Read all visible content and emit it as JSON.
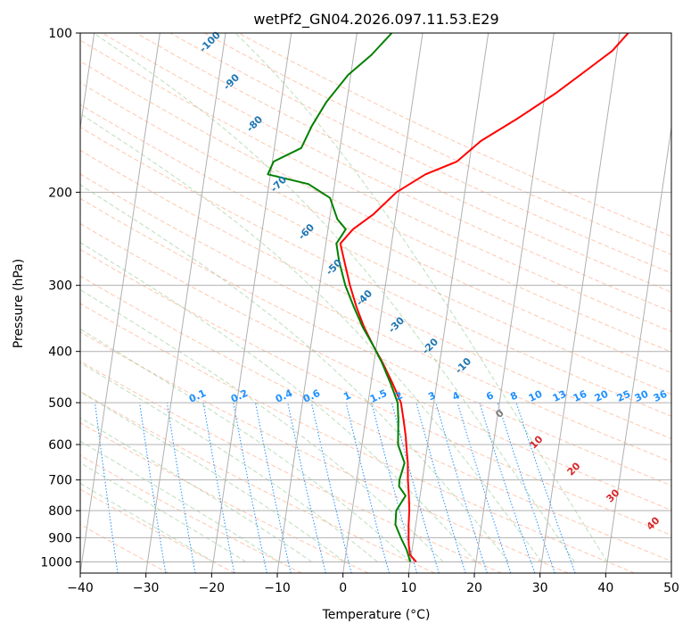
{
  "chart_data": {
    "type": "line",
    "diagram": "skew-T log-P",
    "title": "wetPf2_GN04.2026.097.11.53.E29",
    "xlabel": "Temperature (°C)",
    "ylabel": "Pressure (hPa)",
    "xlim": [
      -40,
      50
    ],
    "ylim": [
      1050,
      100
    ],
    "x_ticks": [
      -40,
      -30,
      -20,
      -10,
      0,
      10,
      20,
      30,
      40,
      50
    ],
    "y_ticks": [
      100,
      200,
      300,
      400,
      500,
      600,
      700,
      800,
      900,
      1000
    ],
    "grid": true,
    "colors": {
      "temperature": "#ff0000",
      "dewpoint": "#008000",
      "isotherm": "#b0b0b0",
      "dry_adiabat": "#ffa07a",
      "moist_adiabat": "#90c890",
      "mixing_ratio": "#1e90ff",
      "grid": "#b0b0b0",
      "wet_bulb_label": "#1f77b4",
      "theta_w_label": "#d62728"
    },
    "series": [
      {
        "name": "Temperature",
        "points": [
          [
            10.9,
            1000
          ],
          [
            9.8,
            970
          ],
          [
            9.4,
            930
          ],
          [
            9.2,
            900
          ],
          [
            8.9,
            850
          ],
          [
            8.7,
            800
          ],
          [
            8.3,
            750
          ],
          [
            7.8,
            700
          ],
          [
            7.4,
            650
          ],
          [
            7,
            620
          ],
          [
            6.5,
            580
          ],
          [
            5.8,
            540
          ],
          [
            5,
            500
          ],
          [
            3.3,
            460
          ],
          [
            1.3,
            420
          ],
          [
            -0.5,
            390
          ],
          [
            -2.3,
            360
          ],
          [
            -3.9,
            330
          ],
          [
            -5.4,
            300
          ],
          [
            -6.8,
            270
          ],
          [
            -7.8,
            250
          ],
          [
            -6.2,
            235
          ],
          [
            -3.4,
            220
          ],
          [
            -0.4,
            200
          ],
          [
            3.6,
            185
          ],
          [
            8.1,
            175
          ],
          [
            11.3,
            160
          ],
          [
            16.4,
            145
          ],
          [
            21.6,
            130
          ],
          [
            26.7,
            115
          ],
          [
            29.3,
            108
          ],
          [
            31.3,
            100
          ]
        ]
      },
      {
        "name": "Dewpoint",
        "points": [
          [
            10,
            1000
          ],
          [
            9.2,
            950
          ],
          [
            8,
            900
          ],
          [
            6.9,
            850
          ],
          [
            6.7,
            800
          ],
          [
            7.8,
            750
          ],
          [
            6.6,
            720
          ],
          [
            6.5,
            700
          ],
          [
            6.9,
            650
          ],
          [
            5.5,
            600
          ],
          [
            5,
            540
          ],
          [
            4.5,
            500
          ],
          [
            3,
            460
          ],
          [
            1.2,
            420
          ],
          [
            -0.5,
            390
          ],
          [
            -2.5,
            360
          ],
          [
            -4.3,
            330
          ],
          [
            -6.1,
            300
          ],
          [
            -7.6,
            270
          ],
          [
            -8.4,
            250
          ],
          [
            -7.3,
            235
          ],
          [
            -8.8,
            225
          ],
          [
            -10.4,
            205
          ],
          [
            -14,
            193
          ],
          [
            -20.4,
            185
          ],
          [
            -19.8,
            175
          ],
          [
            -15.9,
            165
          ],
          [
            -14.8,
            150
          ],
          [
            -13.1,
            135
          ],
          [
            -10.4,
            120
          ],
          [
            -7.3,
            110
          ],
          [
            -4.7,
            100
          ]
        ]
      }
    ],
    "wet_bulb_labels": [
      -100,
      -90,
      -80,
      -70,
      -60,
      -50,
      -40,
      -30,
      -20,
      -10
    ],
    "mixing_ratio_labels": [
      "0.1",
      "0.2",
      "0.4",
      "0.6",
      "1",
      "1.5",
      "2",
      "3",
      "4",
      "6",
      "8",
      "10",
      "13",
      "16",
      "20",
      "25",
      "30",
      "36"
    ],
    "theta_w_labels": [
      0,
      10,
      20,
      30,
      40
    ]
  }
}
